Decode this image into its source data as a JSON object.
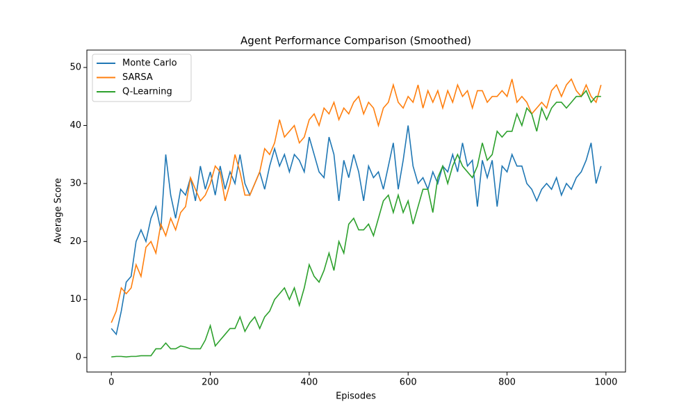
{
  "chart_data": {
    "type": "line",
    "title": "Agent Performance Comparison (Smoothed)",
    "x_label": "Episodes",
    "y_label": "Average Score",
    "x": [
      0,
      10,
      20,
      30,
      40,
      50,
      60,
      70,
      80,
      90,
      100,
      110,
      120,
      130,
      140,
      150,
      160,
      170,
      180,
      190,
      200,
      210,
      220,
      230,
      240,
      250,
      260,
      270,
      280,
      290,
      300,
      310,
      320,
      330,
      340,
      350,
      360,
      370,
      380,
      390,
      400,
      410,
      420,
      430,
      440,
      450,
      460,
      470,
      480,
      490,
      500,
      510,
      520,
      530,
      540,
      550,
      560,
      570,
      580,
      590,
      600,
      610,
      620,
      630,
      640,
      650,
      660,
      670,
      680,
      690,
      700,
      710,
      720,
      730,
      740,
      750,
      760,
      770,
      780,
      790,
      800,
      810,
      820,
      830,
      840,
      850,
      860,
      870,
      880,
      890,
      900,
      910,
      920,
      930,
      940,
      950,
      960,
      970,
      980,
      990
    ],
    "series": [
      {
        "name": "Monte Carlo",
        "color": "#1f77b4",
        "values": [
          5,
          4,
          8,
          13,
          14,
          20,
          22,
          20,
          24,
          26,
          22,
          35,
          28,
          24,
          29,
          28,
          31,
          27,
          33,
          29,
          32,
          28,
          33,
          29,
          32,
          30,
          35,
          30,
          28,
          30,
          32,
          29,
          33,
          36,
          33,
          35,
          32,
          35,
          34,
          32,
          38,
          35,
          32,
          31,
          38,
          35,
          27,
          34,
          31,
          35,
          32,
          27,
          33,
          31,
          32,
          29,
          33,
          37,
          29,
          34,
          40,
          33,
          30,
          31,
          29,
          32,
          30,
          33,
          32,
          35,
          32,
          37,
          33,
          34,
          26,
          34,
          31,
          34,
          26,
          33,
          32,
          35,
          33,
          33,
          30,
          29,
          27,
          29,
          30,
          29,
          31,
          28,
          30,
          29,
          31,
          32,
          34,
          37,
          30,
          33
        ]
      },
      {
        "name": "SARSA",
        "color": "#ff7f0e",
        "values": [
          6,
          8,
          12,
          11,
          12,
          16,
          14,
          19,
          20,
          18,
          23,
          21,
          24,
          22,
          25,
          26,
          31,
          29,
          27,
          28,
          30,
          33,
          32,
          27,
          30,
          35,
          32,
          28,
          28,
          30,
          32,
          36,
          35,
          37,
          41,
          38,
          39,
          40,
          37,
          38,
          41,
          42,
          40,
          43,
          42,
          44,
          41,
          43,
          42,
          44,
          45,
          42,
          44,
          43,
          40,
          43,
          44,
          47,
          44,
          43,
          45,
          44,
          47,
          43,
          46,
          44,
          46,
          43,
          46,
          44,
          47,
          45,
          46,
          43,
          46,
          46,
          44,
          45,
          45,
          46,
          45,
          48,
          44,
          45,
          44,
          42,
          43,
          44,
          43,
          46,
          47,
          45,
          47,
          48,
          46,
          45,
          47,
          45,
          44,
          47
        ]
      },
      {
        "name": "Q-Learning",
        "color": "#2ca02c",
        "values": [
          0.1,
          0.2,
          0.2,
          0.1,
          0.2,
          0.2,
          0.3,
          0.3,
          0.3,
          1.5,
          1.5,
          2.5,
          1.5,
          1.5,
          2,
          1.8,
          1.5,
          1.5,
          1.5,
          3,
          5.5,
          2,
          3,
          4,
          5,
          5,
          7,
          4.5,
          6,
          7,
          5,
          7,
          8,
          10,
          11,
          12,
          10,
          12,
          9,
          12,
          16,
          14,
          13,
          15,
          18,
          15,
          20,
          18,
          23,
          24,
          22,
          22,
          23,
          21,
          24,
          27,
          28,
          25,
          28,
          25,
          27,
          23,
          26,
          29,
          29,
          25,
          31,
          33,
          30,
          33,
          35,
          33,
          32,
          31,
          33,
          37,
          34,
          35,
          39,
          38,
          39,
          39,
          42,
          40,
          43,
          42,
          39,
          43,
          41,
          43,
          44,
          44,
          43,
          44,
          45,
          45,
          46,
          44,
          45,
          45
        ]
      }
    ],
    "xlim": [
      -49.5,
      1039.5
    ],
    "ylim": [
      -2.5,
      53
    ],
    "xticks": [
      0,
      200,
      400,
      600,
      800,
      1000
    ],
    "yticks": [
      0,
      10,
      20,
      30,
      40,
      50
    ],
    "legend": "upper left"
  }
}
